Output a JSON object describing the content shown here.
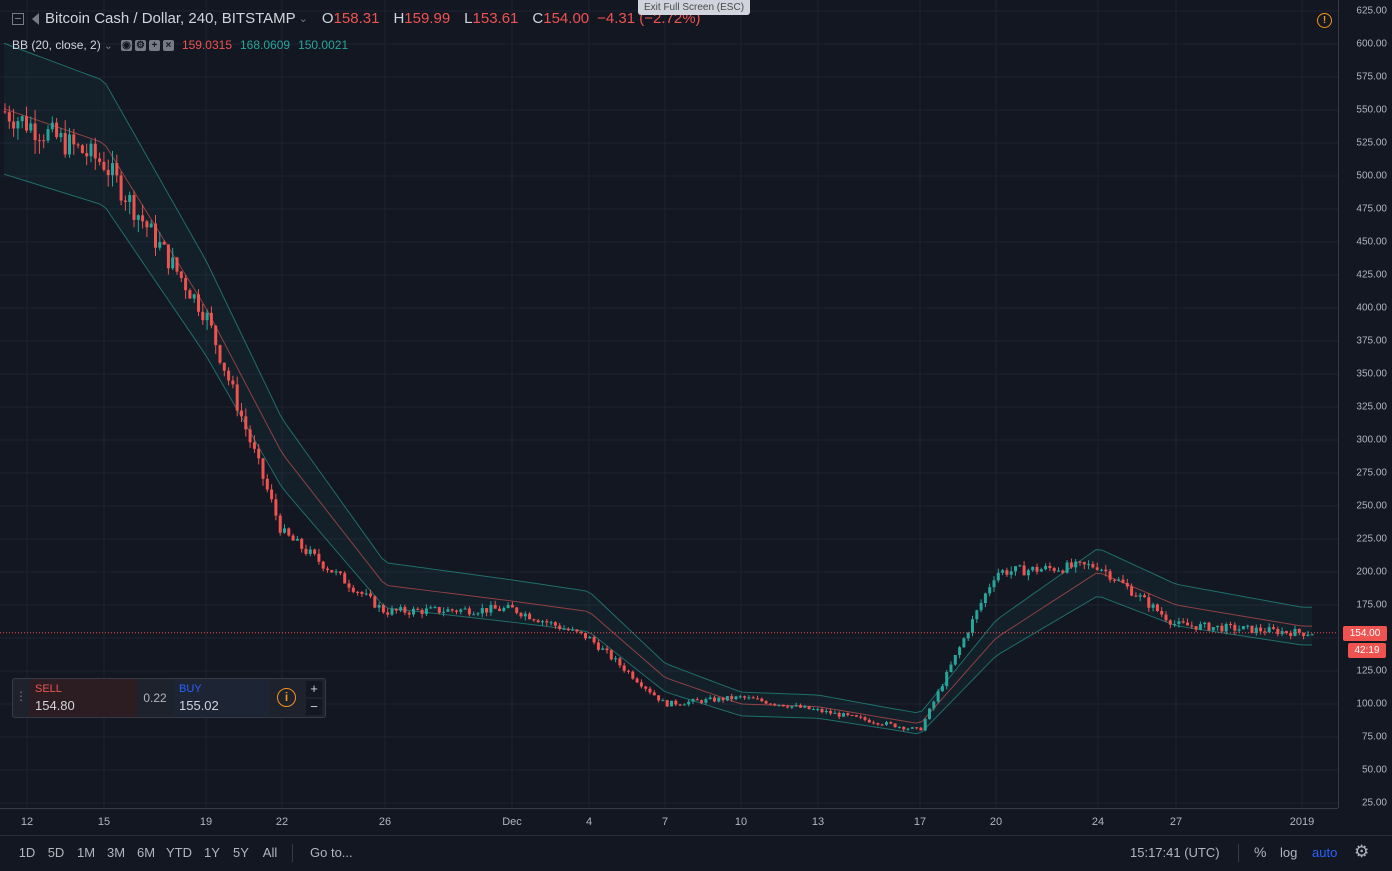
{
  "header": {
    "symbol": "Bitcoin Cash / Dollar, 240, BITSTAMP",
    "open_label": "O",
    "open": "158.31",
    "high_label": "H",
    "high": "159.99",
    "low_label": "L",
    "low": "153.61",
    "close_label": "C",
    "close": "154.00",
    "change": "−4.31 (−2.72%)",
    "exit_fullscreen": "Exit Full Screen (ESC)"
  },
  "indicator": {
    "name": "BB (20, close, 2)",
    "basis": "159.0315",
    "upper": "168.0609",
    "lower": "150.0021"
  },
  "trade_panel": {
    "sell_label": "SELL",
    "sell_price": "154.80",
    "spread": "0.22",
    "buy_label": "BUY",
    "buy_price": "155.02",
    "plus": "+",
    "minus": "−"
  },
  "price_axis": {
    "ticks": [
      "625.00",
      "600.00",
      "575.00",
      "550.00",
      "525.00",
      "500.00",
      "475.00",
      "450.00",
      "425.00",
      "400.00",
      "375.00",
      "350.00",
      "325.00",
      "300.00",
      "275.00",
      "250.00",
      "225.00",
      "200.00",
      "175.00",
      "150.00",
      "125.00",
      "100.00",
      "75.00",
      "50.00",
      "25.00"
    ],
    "last_price": "154.00",
    "countdown": "42:19"
  },
  "time_axis": {
    "ticks": [
      "12",
      "15",
      "19",
      "22",
      "26",
      "Dec",
      "4",
      "7",
      "10",
      "13",
      "17",
      "20",
      "24",
      "27",
      "2019"
    ]
  },
  "bottom_bar": {
    "ranges": [
      "1D",
      "5D",
      "1M",
      "3M",
      "6M",
      "YTD",
      "1Y",
      "5Y",
      "All"
    ],
    "goto": "Go to...",
    "clock": "15:17:41 (UTC)",
    "percent": "%",
    "log": "log",
    "auto": "auto",
    "settings_icon": "gear-icon"
  },
  "colors": {
    "up": "#26a69a",
    "down": "#ef5350",
    "background": "#131722",
    "band": "#26a69a",
    "basis": "#b04a4a",
    "accent": "#2962ff",
    "warning": "#f7931a"
  },
  "chart_data": {
    "type": "line",
    "title": "Bitcoin Cash / Dollar, 240, BITSTAMP",
    "ylim": [
      25,
      625
    ],
    "x": [
      "12",
      "15",
      "19",
      "22",
      "26",
      "Dec",
      "4",
      "7",
      "10",
      "13",
      "17",
      "20",
      "24",
      "27",
      "2019"
    ],
    "series": [
      {
        "name": "Bitcoin Cash / Dollar",
        "values": [
          540,
          510,
          395,
          230,
          170,
          172,
          150,
          100,
          105,
          95,
          80,
          200,
          205,
          160,
          154
        ]
      },
      {
        "name": "BB (20, close, 2)",
        "values": [
          545,
          525,
          400,
          290,
          190,
          178,
          170,
          120,
          100,
          98,
          85,
          150,
          200,
          175,
          159
        ]
      }
    ],
    "last_price": 154.0,
    "grid": true
  }
}
